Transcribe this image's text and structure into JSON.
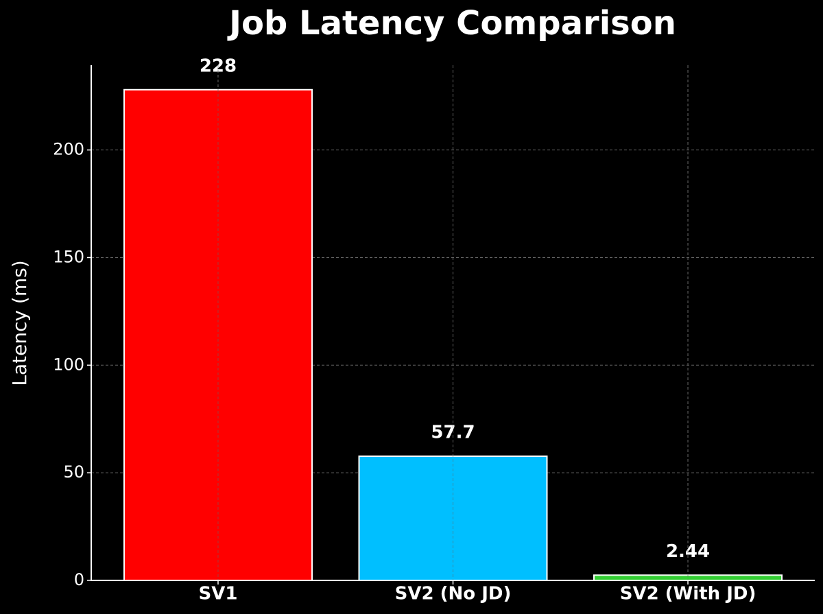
{
  "chart_data": {
    "type": "bar",
    "title": "Job Latency Comparison",
    "y_label": "Latency (ms)",
    "categories": [
      "SV1",
      "SV2 (No JD)",
      "SV2 (With JD)"
    ],
    "values": [
      228,
      57.7,
      2.44
    ],
    "colors": [
      "#ff0000",
      "#00bfff",
      "#32cd32"
    ],
    "ylim": [
      0,
      239.4
    ],
    "yticks": [
      0,
      50,
      100,
      150,
      200
    ],
    "grid": true
  }
}
